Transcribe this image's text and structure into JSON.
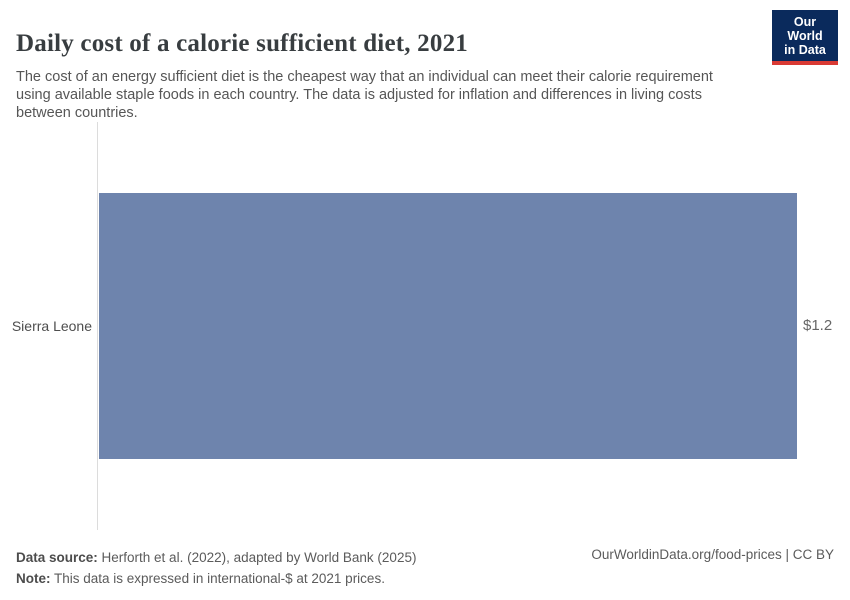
{
  "chart_data": {
    "type": "bar",
    "orientation": "horizontal",
    "title": "Daily cost of a calorie sufficient diet, 2021",
    "subtitle": "The cost of an energy sufficient diet is the cheapest way that an individual can meet their calorie requirement using available staple foods in each country. The data is adjusted for inflation and differences in living costs between countries.",
    "categories": [
      "Sierra Leone"
    ],
    "values": [
      1.2
    ],
    "value_labels": [
      "$1.2"
    ],
    "unit": "international-$ at 2021 prices",
    "xlim": [
      0,
      1.2
    ],
    "grid": false,
    "legend": false,
    "bar_color": "#6e84ad",
    "axis_color": "#dcdcdc"
  },
  "logo": {
    "line1": "Our World",
    "line2": "in Data",
    "bg_color": "#0a2a5c",
    "stripe_color": "#d93a34"
  },
  "footer": {
    "datasource_label": "Data source:",
    "datasource_text": " Herforth et al. (2022), adapted by World Bank (2025)",
    "note_label": "Note:",
    "note_text": " This data is expressed in international-$ at 2021 prices.",
    "credit": "OurWorldinData.org/food-prices | CC BY"
  }
}
